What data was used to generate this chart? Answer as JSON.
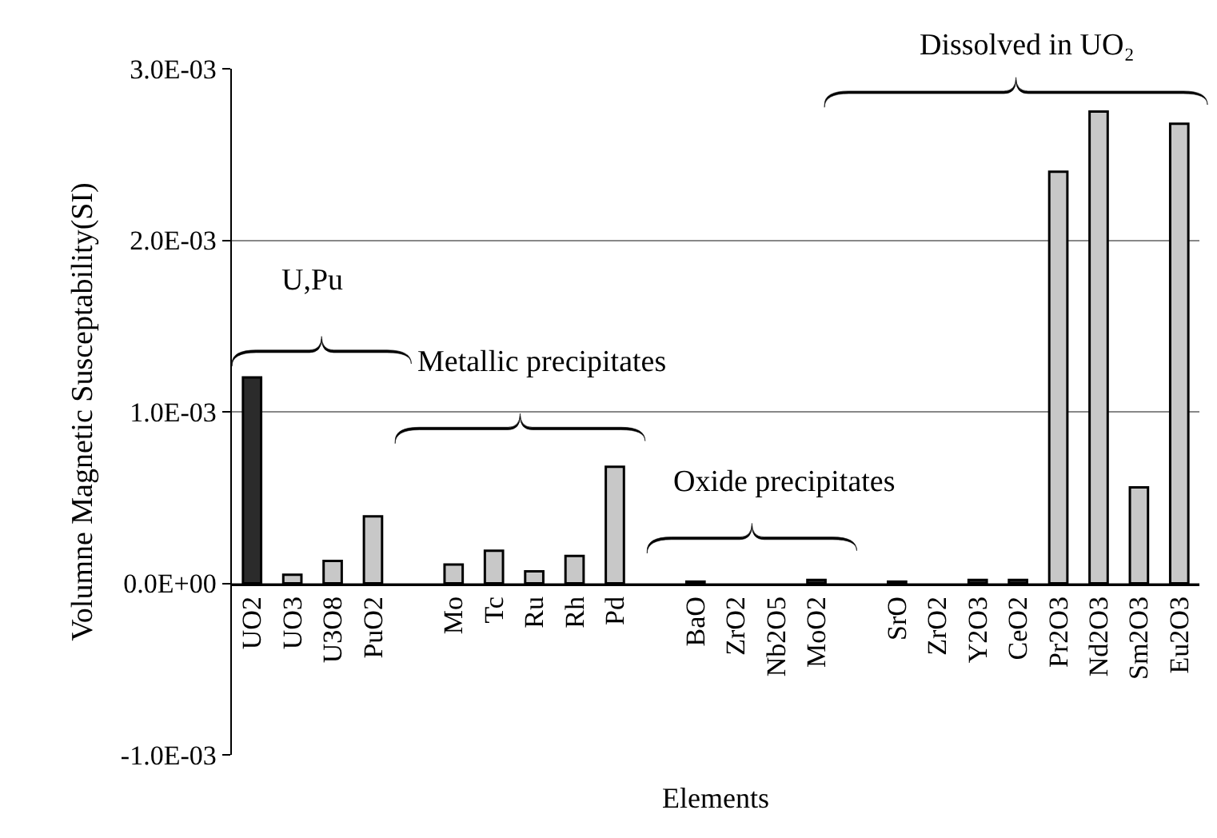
{
  "chart_data": {
    "type": "bar",
    "xlabel": "Elements",
    "ylabel": "Volumne Magnetic Susceptability(SI)",
    "categories": [
      "UO2",
      "UO3",
      "U3O8",
      "PuO2",
      null,
      "Mo",
      "Tc",
      "Ru",
      "Rh",
      "Pd",
      null,
      "BaO",
      "ZrO2",
      "Nb2O5",
      "MoO2",
      null,
      "SrO",
      "ZrO2",
      "Y2O3",
      "CeO2",
      "Pr2O3",
      "Nd2O3",
      "Sm2O3",
      "Eu2O3"
    ],
    "values": [
      0.0012,
      5e-05,
      0.00013,
      0.00039,
      null,
      0.00011,
      0.00019,
      7e-05,
      0.00016,
      0.00068,
      null,
      1e-05,
      null,
      null,
      2e-05,
      null,
      1e-05,
      null,
      2e-05,
      2e-05,
      0.0024,
      0.00275,
      0.00056,
      0.00268
    ],
    "colors": [
      "#2b2b2b",
      "#c8c8c8",
      "#c8c8c8",
      "#c8c8c8",
      "#c8c8c8",
      "#c8c8c8",
      "#c8c8c8",
      "#c8c8c8",
      "#c8c8c8",
      "#c8c8c8",
      "#c8c8c8",
      "#2b2b2b",
      "#c8c8c8",
      "#c8c8c8",
      "#2b2b2b",
      "#c8c8c8",
      "#2b2b2b",
      "#c8c8c8",
      "#2b2b2b",
      "#2b2b2b",
      "#c8c8c8",
      "#c8c8c8",
      "#c8c8c8",
      "#c8c8c8"
    ],
    "ylim": [
      -0.001,
      0.003
    ],
    "yticks": [
      {
        "value": -0.001,
        "label": "-1.0E-03"
      },
      {
        "value": 0,
        "label": "0.0E+00"
      },
      {
        "value": 0.001,
        "label": "1.0E-03"
      },
      {
        "value": 0.002,
        "label": "2.0E-03"
      },
      {
        "value": 0.003,
        "label": "3.0E-03"
      }
    ],
    "grid": "y",
    "annotations": [
      "U,Pu",
      "Metallic precipitates",
      "Oxide precipitates",
      "Dissolved in UO₂"
    ]
  }
}
